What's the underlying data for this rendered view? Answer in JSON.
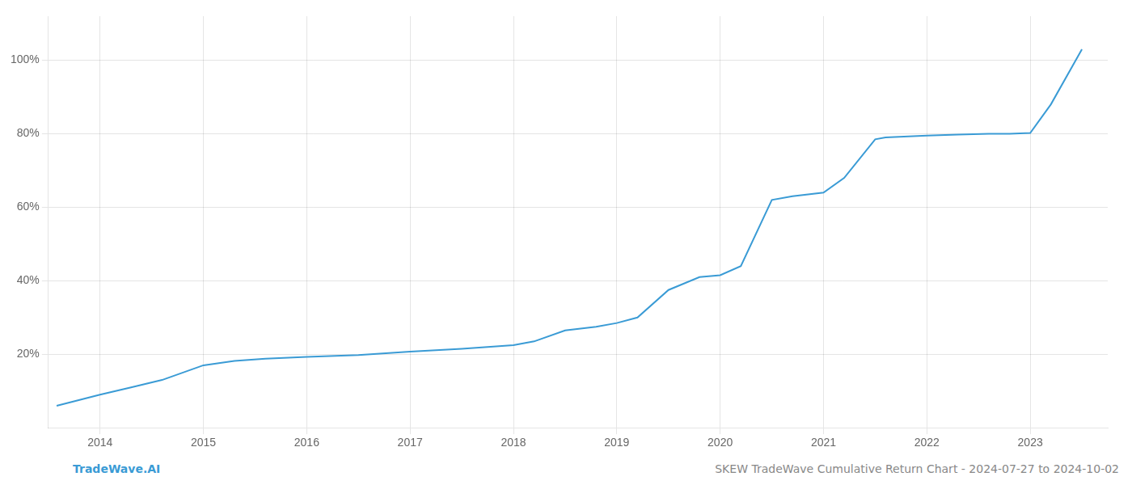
{
  "chart_data": {
    "type": "line",
    "x": [
      2013.58,
      2014.0,
      2014.3,
      2014.6,
      2015.0,
      2015.3,
      2015.6,
      2016.0,
      2016.5,
      2017.0,
      2017.5,
      2018.0,
      2018.2,
      2018.5,
      2018.8,
      2019.0,
      2019.2,
      2019.5,
      2019.8,
      2020.0,
      2020.2,
      2020.5,
      2020.7,
      2021.0,
      2021.2,
      2021.5,
      2021.6,
      2022.0,
      2022.3,
      2022.6,
      2022.8,
      2023.0,
      2023.2,
      2023.5
    ],
    "values": [
      0.06,
      0.09,
      0.11,
      0.13,
      0.17,
      0.182,
      0.188,
      0.193,
      0.198,
      0.207,
      0.215,
      0.225,
      0.235,
      0.265,
      0.275,
      0.285,
      0.3,
      0.375,
      0.41,
      0.415,
      0.44,
      0.62,
      0.63,
      0.64,
      0.68,
      0.785,
      0.79,
      0.795,
      0.798,
      0.8,
      0.8,
      0.802,
      0.88,
      1.03
    ],
    "color": "#3a9bd5",
    "xlim": [
      2013.5,
      2023.75
    ],
    "xticks": [
      2014,
      2015,
      2016,
      2017,
      2018,
      2019,
      2020,
      2021,
      2022,
      2023
    ],
    "ylim": [
      0.0,
      1.12
    ],
    "yticks": [
      {
        "value": 0.2,
        "label": "20%"
      },
      {
        "value": 0.4,
        "label": "40%"
      },
      {
        "value": 0.6,
        "label": "60%"
      },
      {
        "value": 0.8,
        "label": "80%"
      },
      {
        "value": 1.0,
        "label": "100%"
      }
    ],
    "grid": true,
    "annotations": [
      "TradeWave.AI",
      "SKEW TradeWave Cumulative Return Chart - 2024-07-27 to 2024-10-02"
    ]
  }
}
